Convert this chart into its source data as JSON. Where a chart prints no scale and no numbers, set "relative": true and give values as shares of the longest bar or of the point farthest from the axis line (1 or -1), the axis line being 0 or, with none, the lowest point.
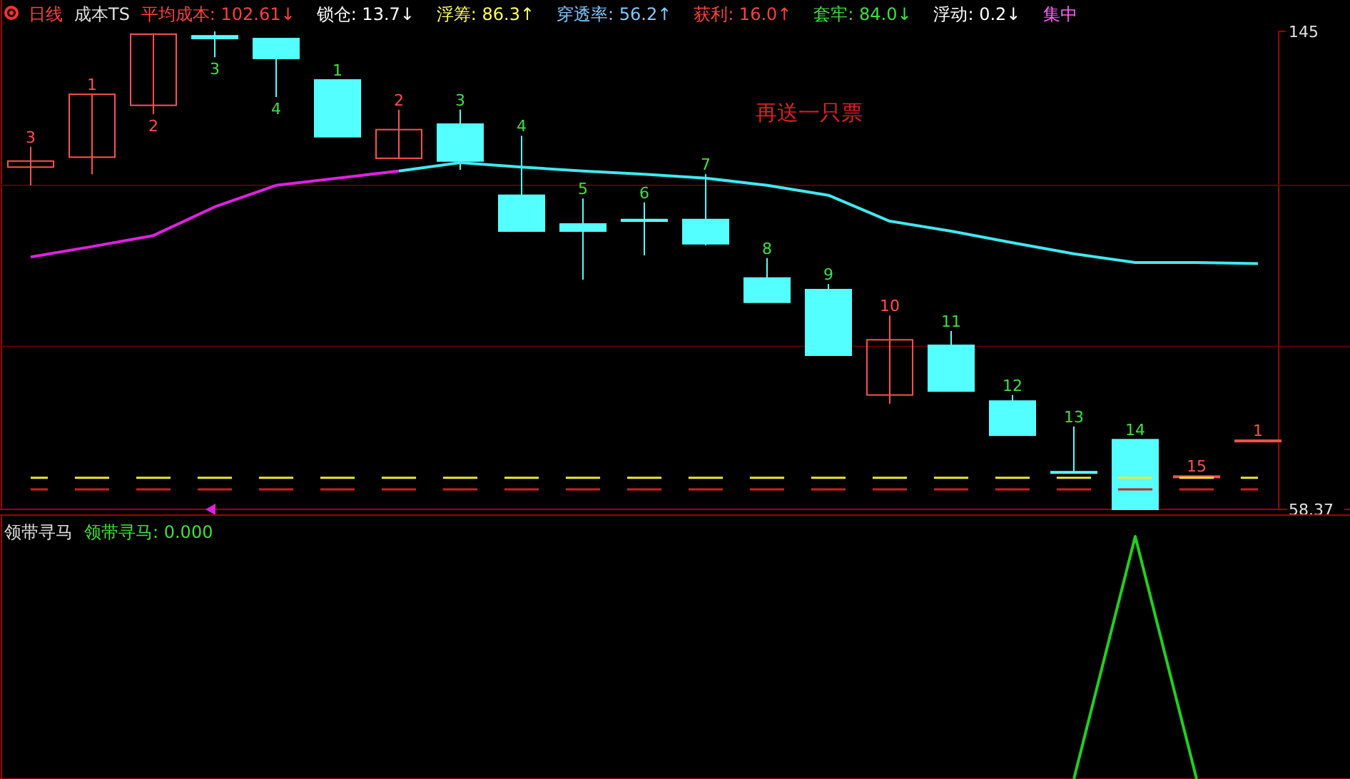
{
  "chart_data": [
    {
      "type": "candlestick",
      "title": "日线",
      "subtitle": "成本TS",
      "tick_labels": "y",
      "categories": [
        null,
        null,
        null,
        null,
        null,
        null,
        null,
        null,
        null,
        null,
        null,
        null,
        null,
        null,
        null,
        null,
        null,
        null,
        null,
        null,
        null
      ],
      "ylim": [
        58.37,
        145
      ],
      "yticks": [
        58.37,
        145
      ],
      "ohlc": [
        [
          120.4,
          124.1,
          117.1,
          121.5
        ],
        [
          122.2,
          133.6,
          119.1,
          133.6
        ],
        [
          131.6,
          144.5,
          130.0,
          144.5
        ],
        [
          144.2,
          145,
          140.3,
          143.7
        ],
        [
          143.7,
          143.7,
          133.1,
          140.1
        ],
        [
          136.2,
          136.2,
          125.9,
          125.9
        ],
        [
          122.0,
          130.8,
          122.0,
          127.2
        ],
        [
          128.2,
          130.8,
          119.9,
          121.5
        ],
        [
          115.3,
          126.1,
          108.8,
          108.8
        ],
        [
          110.1,
          114.7,
          100.0,
          108.8
        ],
        [
          110.9,
          114.0,
          104.4,
          110.6
        ],
        [
          110.9,
          119.1,
          106.2,
          106.5
        ],
        [
          100.3,
          103.9,
          95.9,
          95.9
        ],
        [
          98.2,
          99.2,
          86.3,
          86.3
        ],
        [
          79.1,
          93.5,
          77.5,
          89.1
        ],
        [
          88.1,
          90.7,
          79.8,
          79.8
        ],
        [
          78.0,
          79.1,
          71.8,
          71.8
        ],
        [
          65.2,
          73.4,
          65.1,
          65.1
        ],
        [
          71.0,
          71.0,
          58.37,
          58.37
        ],
        [
          64.3,
          64.4,
          64.3,
          64.4
        ],
        [
          70.8,
          70.9,
          70.8,
          70.9
        ]
      ],
      "value_labels": [
        "3",
        "1",
        "2",
        "3",
        "4",
        "1",
        "2",
        "3",
        "4",
        "5",
        "6",
        "7",
        "8",
        "9",
        "10",
        "11",
        "12",
        "13",
        "14",
        "15",
        "1"
      ],
      "series": [
        {
          "type": "line",
          "color": "#e020e0",
          "values": [
            104.1,
            106.0,
            108.0,
            113.2,
            117.1,
            118.4,
            119.7,
            null,
            null,
            null,
            null,
            null,
            null,
            null,
            null,
            null,
            null,
            null,
            null,
            null,
            null
          ]
        },
        {
          "type": "line",
          "color": "#40e8f0",
          "values": [
            null,
            null,
            null,
            null,
            null,
            null,
            119.7,
            121.2,
            120.4,
            119.7,
            119.1,
            118.4,
            117.1,
            115.3,
            110.6,
            108.8,
            106.7,
            104.7,
            103.1,
            103.1,
            102.9
          ]
        },
        {
          "type": "line",
          "color": "#e8e83c",
          "line_style": "dashed",
          "values": [
            64.1,
            64.1,
            64.1,
            64.1,
            64.1,
            64.1,
            64.1,
            64.1,
            64.1,
            64.1,
            64.1,
            64.1,
            64.1,
            64.1,
            64.1,
            64.1,
            64.1,
            64.1,
            64.1,
            64.1,
            64.1
          ]
        },
        {
          "type": "line",
          "color": "#d02020",
          "line_style": "dashed",
          "values": [
            62.0,
            62.0,
            62.0,
            62.0,
            62.0,
            62.0,
            62.0,
            62.0,
            62.0,
            62.0,
            62.0,
            62.0,
            62.0,
            62.0,
            62.0,
            62.0,
            62.0,
            62.0,
            62.0,
            62.0,
            62.0
          ]
        }
      ],
      "ref_lines": [
        {
          "axis": "y",
          "value": 117.1,
          "color": "#5a0000"
        },
        {
          "axis": "y",
          "value": 87.9,
          "color": "#5a0000"
        }
      ],
      "annotations": [
        "平均成本: 102.61↓",
        "锁仓: 13.7↓",
        "浮筹: 86.3↑",
        "穿透率: 56.2↑",
        "获利: 16.0↑",
        "套牢: 84.0↓",
        "浮动: 0.2↓",
        "集中",
        "再送一只票"
      ]
    },
    {
      "type": "line",
      "title": "领带寻马",
      "relative": true,
      "categories": [
        null,
        null,
        null,
        null,
        null,
        null,
        null,
        null,
        null,
        null,
        null,
        null,
        null,
        null,
        null,
        null,
        null,
        null,
        null,
        null,
        null
      ],
      "series": [
        {
          "color": "#20d020",
          "values": [
            null,
            null,
            null,
            null,
            null,
            null,
            null,
            null,
            null,
            null,
            null,
            null,
            null,
            null,
            null,
            null,
            null,
            0,
            1,
            0,
            null
          ]
        }
      ],
      "annotations": [
        "领带寻马: 0.000"
      ]
    }
  ]
}
